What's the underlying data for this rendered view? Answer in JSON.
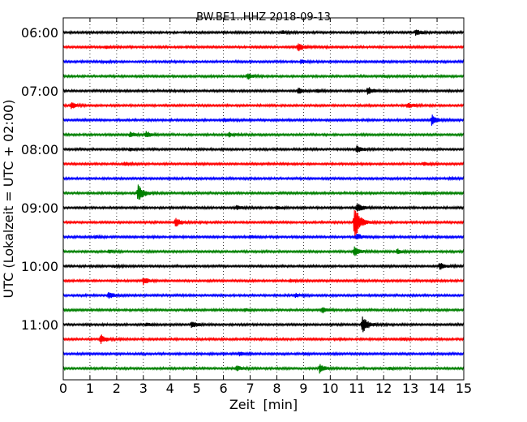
{
  "chart_data": {
    "type": "line",
    "title": "BW.BE1..HHZ 2018-09-13",
    "xlabel": "Zeit  [min]",
    "ylabel": "UTC (Lokalzeit = UTC + 02:00)",
    "xlim": [
      0,
      15
    ],
    "x_ticks": [
      0,
      1,
      2,
      3,
      4,
      5,
      6,
      7,
      8,
      9,
      10,
      11,
      12,
      13,
      14,
      15
    ],
    "x_tick_labels": [
      "0",
      "1",
      "2",
      "3",
      "4",
      "5",
      "6",
      "7",
      "8",
      "9",
      "10",
      "11",
      "12",
      "13",
      "14",
      "15"
    ],
    "y_ticks": [
      {
        "label": "06:00",
        "row": 0
      },
      {
        "label": "07:00",
        "row": 4
      },
      {
        "label": "08:00",
        "row": 8
      },
      {
        "label": "09:00",
        "row": 12
      },
      {
        "label": "10:00",
        "row": 16
      },
      {
        "label": "11:00",
        "row": 20
      }
    ],
    "grid": "vertical-dotted",
    "series_colors": [
      "#000000",
      "#ff0000",
      "#0000ff",
      "#008000"
    ],
    "series": [
      {
        "start": "06:00",
        "color": "#000000",
        "events": [
          {
            "t": 8.2,
            "amp": 0.15
          },
          {
            "t": 13.2,
            "amp": 0.3
          }
        ]
      },
      {
        "start": "06:15",
        "color": "#ff0000",
        "events": [
          {
            "t": 8.8,
            "amp": 0.4
          },
          {
            "t": 1.6,
            "amp": 0.12
          }
        ]
      },
      {
        "start": "06:30",
        "color": "#0000ff",
        "events": [
          {
            "t": 8.9,
            "amp": 0.2
          },
          {
            "t": 1.5,
            "amp": 0.1
          }
        ]
      },
      {
        "start": "06:45",
        "color": "#008000",
        "events": [
          {
            "t": 6.9,
            "amp": 0.3
          },
          {
            "t": 12.0,
            "amp": 0.08
          }
        ]
      },
      {
        "start": "07:00",
        "color": "#000000",
        "events": [
          {
            "t": 8.8,
            "amp": 0.3
          },
          {
            "t": 11.4,
            "amp": 0.4
          },
          {
            "t": 9.5,
            "amp": 0.15
          }
        ]
      },
      {
        "start": "07:15",
        "color": "#ff0000",
        "events": [
          {
            "t": 0.3,
            "amp": 0.3
          },
          {
            "t": 12.9,
            "amp": 0.25
          }
        ]
      },
      {
        "start": "07:30",
        "color": "#0000ff",
        "events": [
          {
            "t": 13.8,
            "amp": 0.55
          },
          {
            "t": 6.0,
            "amp": 0.15
          }
        ]
      },
      {
        "start": "07:45",
        "color": "#008000",
        "events": [
          {
            "t": 2.5,
            "amp": 0.25
          },
          {
            "t": 3.1,
            "amp": 0.3
          },
          {
            "t": 6.2,
            "amp": 0.2
          }
        ]
      },
      {
        "start": "08:00",
        "color": "#000000",
        "events": [
          {
            "t": 11.0,
            "amp": 0.4
          },
          {
            "t": 2.5,
            "amp": 0.12
          }
        ]
      },
      {
        "start": "08:15",
        "color": "#ff0000",
        "events": [
          {
            "t": 2.3,
            "amp": 0.15
          },
          {
            "t": 13.5,
            "amp": 0.15
          }
        ]
      },
      {
        "start": "08:30",
        "color": "#0000ff",
        "events": [
          {
            "t": 14.5,
            "amp": 0.1
          }
        ]
      },
      {
        "start": "08:45",
        "color": "#008000",
        "events": [
          {
            "t": 2.8,
            "amp": 0.9
          },
          {
            "t": 13.5,
            "amp": 0.15
          }
        ]
      },
      {
        "start": "09:00",
        "color": "#000000",
        "events": [
          {
            "t": 6.5,
            "amp": 0.2
          },
          {
            "t": 8.0,
            "amp": 0.18
          },
          {
            "t": 11.0,
            "amp": 0.5
          }
        ]
      },
      {
        "start": "09:15",
        "color": "#ff0000",
        "events": [
          {
            "t": 4.2,
            "amp": 0.5
          },
          {
            "t": 10.9,
            "amp": 1.9
          }
        ]
      },
      {
        "start": "09:30",
        "color": "#0000ff",
        "events": [
          {
            "t": 11.0,
            "amp": 0.3
          },
          {
            "t": 1.2,
            "amp": 0.12
          },
          {
            "t": 7.0,
            "amp": 0.12
          }
        ]
      },
      {
        "start": "09:45",
        "color": "#008000",
        "events": [
          {
            "t": 10.9,
            "amp": 0.55
          },
          {
            "t": 12.5,
            "amp": 0.25
          },
          {
            "t": 1.7,
            "amp": 0.15
          }
        ]
      },
      {
        "start": "10:00",
        "color": "#000000",
        "events": [
          {
            "t": 14.1,
            "amp": 0.35
          },
          {
            "t": 1.9,
            "amp": 0.12
          }
        ]
      },
      {
        "start": "10:15",
        "color": "#ff0000",
        "events": [
          {
            "t": 3.0,
            "amp": 0.35
          },
          {
            "t": 8.5,
            "amp": 0.12
          }
        ]
      },
      {
        "start": "10:30",
        "color": "#0000ff",
        "events": [
          {
            "t": 1.7,
            "amp": 0.3
          },
          {
            "t": 8.7,
            "amp": 0.18
          }
        ]
      },
      {
        "start": "10:45",
        "color": "#008000",
        "events": [
          {
            "t": 9.7,
            "amp": 0.3
          },
          {
            "t": 6.8,
            "amp": 0.12
          }
        ]
      },
      {
        "start": "11:00",
        "color": "#000000",
        "events": [
          {
            "t": 4.8,
            "amp": 0.35
          },
          {
            "t": 11.2,
            "amp": 0.95
          },
          {
            "t": 3.1,
            "amp": 0.15
          }
        ]
      },
      {
        "start": "11:15",
        "color": "#ff0000",
        "events": [
          {
            "t": 1.4,
            "amp": 0.45
          },
          {
            "t": 12.7,
            "amp": 0.12
          }
        ]
      },
      {
        "start": "11:30",
        "color": "#0000ff",
        "events": [
          {
            "t": 6.6,
            "amp": 0.2
          },
          {
            "t": 9.0,
            "amp": 0.1
          }
        ]
      },
      {
        "start": "11:45",
        "color": "#008000",
        "events": [
          {
            "t": 9.6,
            "amp": 0.45
          },
          {
            "t": 6.5,
            "amp": 0.25
          },
          {
            "t": 12.2,
            "amp": 0.12
          }
        ]
      }
    ]
  }
}
